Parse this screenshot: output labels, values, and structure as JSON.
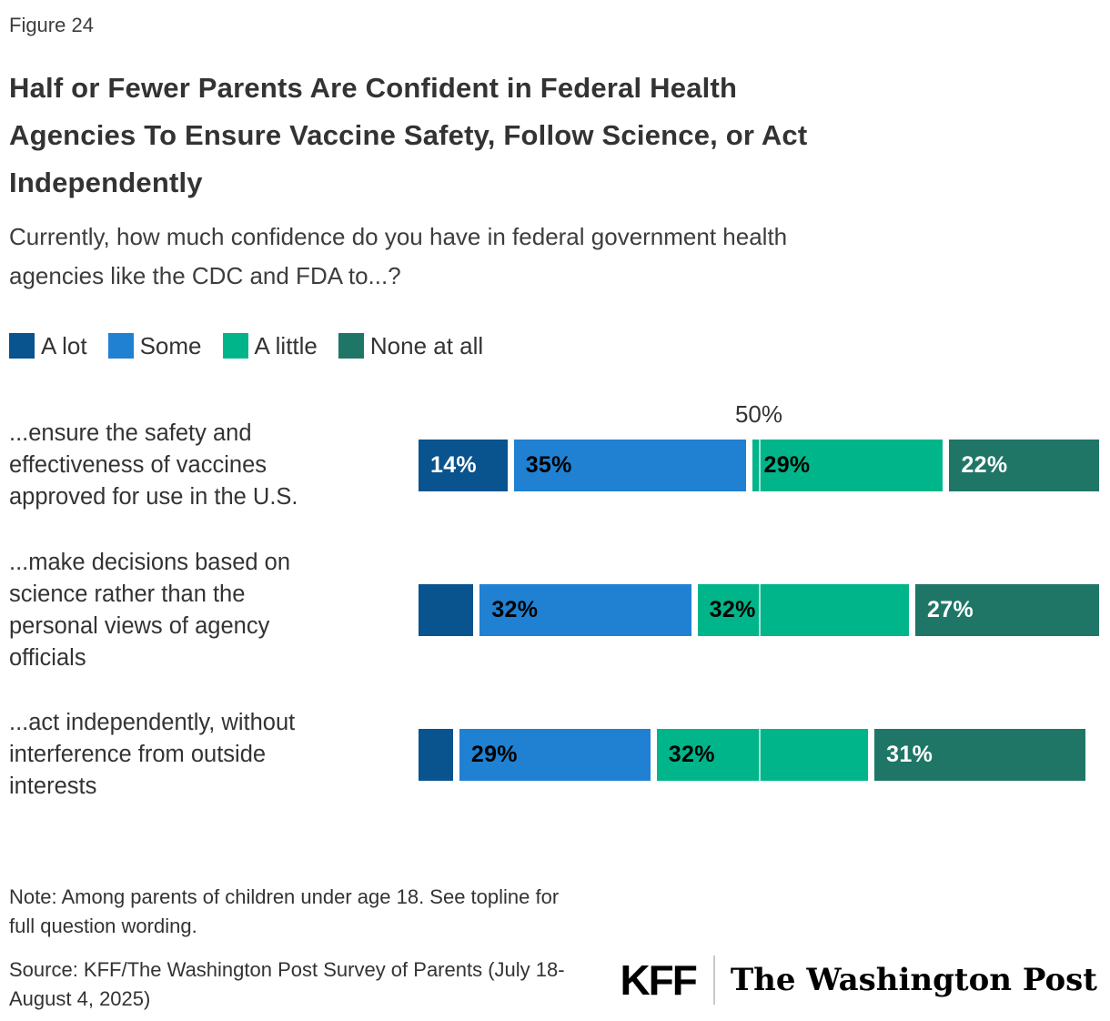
{
  "figure_label": "Figure 24",
  "title": "Half or Fewer Parents Are Confident in Federal Health\nAgencies To Ensure Vaccine Safety, Follow Science, or Act\nIndependently",
  "subtitle": "Currently, how much confidence do you have in federal government health\nagencies like the CDC and FDA to...?",
  "chart_data": {
    "type": "bar",
    "stacked": true,
    "orientation": "horizontal",
    "xlim": [
      0,
      100
    ],
    "gridline": {
      "value": 50,
      "label": "50%"
    },
    "legend_position": "top",
    "series_names": [
      "A lot",
      "Some",
      "A little",
      "None at all"
    ],
    "series_colors": [
      "#09538E",
      "#2081D3",
      "#00B58A",
      "#1F7666"
    ],
    "series_text_colors": [
      "#ffffff",
      "#000000",
      "#000000",
      "#ffffff"
    ],
    "rows": [
      {
        "label": "...ensure the safety and\neffectiveness of vaccines\napproved for use in the U.S.",
        "values": [
          14,
          35,
          29,
          22
        ],
        "value_labels": [
          "14%",
          "35%",
          "29%",
          "22%"
        ]
      },
      {
        "label": "...make decisions based on\nscience rather than the\npersonal views of agency\nofficials",
        "values": [
          9,
          32,
          32,
          27
        ],
        "value_labels": [
          "",
          "32%",
          "32%",
          "27%"
        ]
      },
      {
        "label": "...act independently, without\ninterference from outside\ninterests",
        "values": [
          6,
          29,
          32,
          31
        ],
        "value_labels": [
          "",
          "29%",
          "32%",
          "31%"
        ]
      }
    ]
  },
  "note": "Note: Among parents of children under age 18. See topline for\nfull question wording.",
  "source": "Source: KFF/The Washington Post Survey of Parents (July 18-\nAugust 4, 2025)",
  "logos": {
    "kff": "KFF",
    "washington_post": "The Washington Post"
  }
}
